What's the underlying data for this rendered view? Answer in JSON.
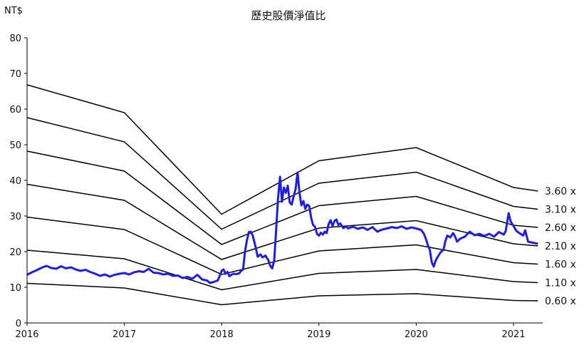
{
  "chart_data": {
    "type": "line",
    "title": "歷史股價淨值比",
    "y_unit": "NT$",
    "ylim": [
      0,
      80
    ],
    "y_ticks": [
      0,
      10,
      20,
      30,
      40,
      50,
      60,
      70,
      80
    ],
    "xlim": [
      2016.0,
      2021.3
    ],
    "x_ticks": [
      "2016",
      "2017",
      "2018",
      "2019",
      "2020",
      "2021"
    ],
    "grid": false,
    "colors": {
      "bands": "#000000",
      "price": "#1f1fdd"
    },
    "bands": [
      {
        "label": "3.60 x",
        "points": [
          [
            2016.0,
            66.8
          ],
          [
            2017.0,
            59.0
          ],
          [
            2018.0,
            30.5
          ],
          [
            2019.0,
            45.5
          ],
          [
            2020.0,
            49.2
          ],
          [
            2021.0,
            38.0
          ],
          [
            2021.25,
            37.0
          ]
        ]
      },
      {
        "label": "3.10 x",
        "points": [
          [
            2016.0,
            57.6
          ],
          [
            2017.0,
            50.8
          ],
          [
            2018.0,
            26.3
          ],
          [
            2019.0,
            39.2
          ],
          [
            2020.0,
            42.3
          ],
          [
            2021.0,
            32.7
          ],
          [
            2021.25,
            31.9
          ]
        ]
      },
      {
        "label": "2.60 x",
        "points": [
          [
            2016.0,
            48.2
          ],
          [
            2017.0,
            42.6
          ],
          [
            2018.0,
            22.0
          ],
          [
            2019.0,
            32.9
          ],
          [
            2020.0,
            35.5
          ],
          [
            2021.0,
            27.4
          ],
          [
            2021.25,
            26.8
          ]
        ]
      },
      {
        "label": "2.10 x",
        "points": [
          [
            2016.0,
            38.9
          ],
          [
            2017.0,
            34.4
          ],
          [
            2018.0,
            17.8
          ],
          [
            2019.0,
            26.6
          ],
          [
            2020.0,
            28.7
          ],
          [
            2021.0,
            22.2
          ],
          [
            2021.25,
            21.6
          ]
        ]
      },
      {
        "label": "1.60 x",
        "points": [
          [
            2016.0,
            29.7
          ],
          [
            2017.0,
            26.2
          ],
          [
            2018.0,
            13.6
          ],
          [
            2019.0,
            20.2
          ],
          [
            2020.0,
            21.9
          ],
          [
            2021.0,
            16.9
          ],
          [
            2021.25,
            16.5
          ]
        ]
      },
      {
        "label": "1.10 x",
        "points": [
          [
            2016.0,
            20.4
          ],
          [
            2017.0,
            18.0
          ],
          [
            2018.0,
            9.3
          ],
          [
            2019.0,
            13.9
          ],
          [
            2020.0,
            15.0
          ],
          [
            2021.0,
            11.6
          ],
          [
            2021.25,
            11.3
          ]
        ]
      },
      {
        "label": "0.60 x",
        "points": [
          [
            2016.0,
            11.1
          ],
          [
            2017.0,
            9.8
          ],
          [
            2018.0,
            5.1
          ],
          [
            2019.0,
            7.6
          ],
          [
            2020.0,
            8.2
          ],
          [
            2021.0,
            6.3
          ],
          [
            2021.25,
            6.2
          ]
        ]
      }
    ],
    "price": {
      "points": [
        [
          2016.0,
          13.5
        ],
        [
          2016.05,
          14.2
        ],
        [
          2016.1,
          14.8
        ],
        [
          2016.15,
          15.5
        ],
        [
          2016.2,
          16.0
        ],
        [
          2016.25,
          15.4
        ],
        [
          2016.3,
          15.2
        ],
        [
          2016.35,
          15.9
        ],
        [
          2016.4,
          15.3
        ],
        [
          2016.45,
          15.6
        ],
        [
          2016.5,
          15.0
        ],
        [
          2016.55,
          14.6
        ],
        [
          2016.6,
          14.9
        ],
        [
          2016.65,
          14.3
        ],
        [
          2016.7,
          13.8
        ],
        [
          2016.75,
          13.2
        ],
        [
          2016.8,
          13.6
        ],
        [
          2016.85,
          13.0
        ],
        [
          2016.9,
          13.5
        ],
        [
          2016.95,
          13.8
        ],
        [
          2017.0,
          14.0
        ],
        [
          2017.05,
          13.6
        ],
        [
          2017.1,
          14.2
        ],
        [
          2017.15,
          14.5
        ],
        [
          2017.2,
          14.3
        ],
        [
          2017.25,
          15.2
        ],
        [
          2017.3,
          14.1
        ],
        [
          2017.35,
          14.0
        ],
        [
          2017.4,
          13.6
        ],
        [
          2017.45,
          13.8
        ],
        [
          2017.5,
          13.2
        ],
        [
          2017.55,
          13.3
        ],
        [
          2017.6,
          12.6
        ],
        [
          2017.65,
          12.9
        ],
        [
          2017.7,
          12.4
        ],
        [
          2017.75,
          13.5
        ],
        [
          2017.8,
          12.2
        ],
        [
          2017.85,
          11.9
        ],
        [
          2017.88,
          11.2
        ],
        [
          2017.92,
          11.5
        ],
        [
          2017.96,
          11.9
        ],
        [
          2017.98,
          13.2
        ],
        [
          2018.0,
          14.6
        ],
        [
          2018.02,
          15.0
        ],
        [
          2018.04,
          13.8
        ],
        [
          2018.06,
          14.3
        ],
        [
          2018.08,
          13.1
        ],
        [
          2018.1,
          13.5
        ],
        [
          2018.12,
          13.8
        ],
        [
          2018.15,
          13.7
        ],
        [
          2018.18,
          13.9
        ],
        [
          2018.2,
          14.6
        ],
        [
          2018.22,
          15.0
        ],
        [
          2018.24,
          20.0
        ],
        [
          2018.26,
          23.2
        ],
        [
          2018.28,
          25.5
        ],
        [
          2018.3,
          25.6
        ],
        [
          2018.32,
          24.5
        ],
        [
          2018.35,
          21.2
        ],
        [
          2018.37,
          18.6
        ],
        [
          2018.4,
          19.2
        ],
        [
          2018.42,
          18.4
        ],
        [
          2018.45,
          18.9
        ],
        [
          2018.48,
          17.6
        ],
        [
          2018.5,
          16.0
        ],
        [
          2018.52,
          15.3
        ],
        [
          2018.54,
          17.5
        ],
        [
          2018.56,
          26.0
        ],
        [
          2018.58,
          35.0
        ],
        [
          2018.6,
          41.0
        ],
        [
          2018.62,
          34.0
        ],
        [
          2018.64,
          38.0
        ],
        [
          2018.66,
          36.5
        ],
        [
          2018.68,
          38.5
        ],
        [
          2018.7,
          33.8
        ],
        [
          2018.72,
          33.2
        ],
        [
          2018.74,
          35.5
        ],
        [
          2018.76,
          37.5
        ],
        [
          2018.78,
          42.2
        ],
        [
          2018.8,
          36.5
        ],
        [
          2018.82,
          33.0
        ],
        [
          2018.84,
          34.2
        ],
        [
          2018.86,
          32.0
        ],
        [
          2018.88,
          33.2
        ],
        [
          2018.9,
          32.8
        ],
        [
          2018.92,
          29.5
        ],
        [
          2018.94,
          27.5
        ],
        [
          2018.96,
          27.0
        ],
        [
          2018.98,
          25.0
        ],
        [
          2019.0,
          24.5
        ],
        [
          2019.02,
          25.3
        ],
        [
          2019.04,
          24.8
        ],
        [
          2019.06,
          25.6
        ],
        [
          2019.08,
          25.2
        ],
        [
          2019.1,
          27.8
        ],
        [
          2019.12,
          28.8
        ],
        [
          2019.14,
          27.2
        ],
        [
          2019.16,
          28.6
        ],
        [
          2019.18,
          29.0
        ],
        [
          2019.2,
          27.5
        ],
        [
          2019.22,
          27.9
        ],
        [
          2019.25,
          26.6
        ],
        [
          2019.28,
          27.1
        ],
        [
          2019.3,
          26.5
        ],
        [
          2019.35,
          27.0
        ],
        [
          2019.4,
          26.4
        ],
        [
          2019.45,
          26.8
        ],
        [
          2019.5,
          26.1
        ],
        [
          2019.55,
          26.9
        ],
        [
          2019.6,
          25.6
        ],
        [
          2019.65,
          26.2
        ],
        [
          2019.7,
          26.5
        ],
        [
          2019.75,
          26.9
        ],
        [
          2019.8,
          26.6
        ],
        [
          2019.85,
          27.1
        ],
        [
          2019.9,
          26.4
        ],
        [
          2019.95,
          26.8
        ],
        [
          2020.0,
          26.5
        ],
        [
          2020.05,
          26.1
        ],
        [
          2020.08,
          25.0
        ],
        [
          2020.1,
          23.5
        ],
        [
          2020.12,
          21.8
        ],
        [
          2020.14,
          20.5
        ],
        [
          2020.16,
          17.0
        ],
        [
          2020.18,
          15.8
        ],
        [
          2020.2,
          17.5
        ],
        [
          2020.22,
          18.5
        ],
        [
          2020.25,
          19.8
        ],
        [
          2020.28,
          20.5
        ],
        [
          2020.3,
          23.0
        ],
        [
          2020.32,
          24.5
        ],
        [
          2020.35,
          24.0
        ],
        [
          2020.38,
          25.2
        ],
        [
          2020.4,
          24.2
        ],
        [
          2020.42,
          22.8
        ],
        [
          2020.45,
          23.6
        ],
        [
          2020.5,
          24.2
        ],
        [
          2020.55,
          25.6
        ],
        [
          2020.6,
          24.6
        ],
        [
          2020.65,
          25.0
        ],
        [
          2020.7,
          24.4
        ],
        [
          2020.75,
          25.0
        ],
        [
          2020.8,
          24.2
        ],
        [
          2020.85,
          25.5
        ],
        [
          2020.9,
          24.8
        ],
        [
          2020.92,
          25.8
        ],
        [
          2020.95,
          30.8
        ],
        [
          2020.97,
          28.5
        ],
        [
          2021.0,
          27.2
        ],
        [
          2021.03,
          25.8
        ],
        [
          2021.06,
          25.2
        ],
        [
          2021.1,
          24.5
        ],
        [
          2021.12,
          26.0
        ],
        [
          2021.15,
          22.8
        ],
        [
          2021.2,
          22.5
        ],
        [
          2021.25,
          22.2
        ]
      ]
    }
  }
}
